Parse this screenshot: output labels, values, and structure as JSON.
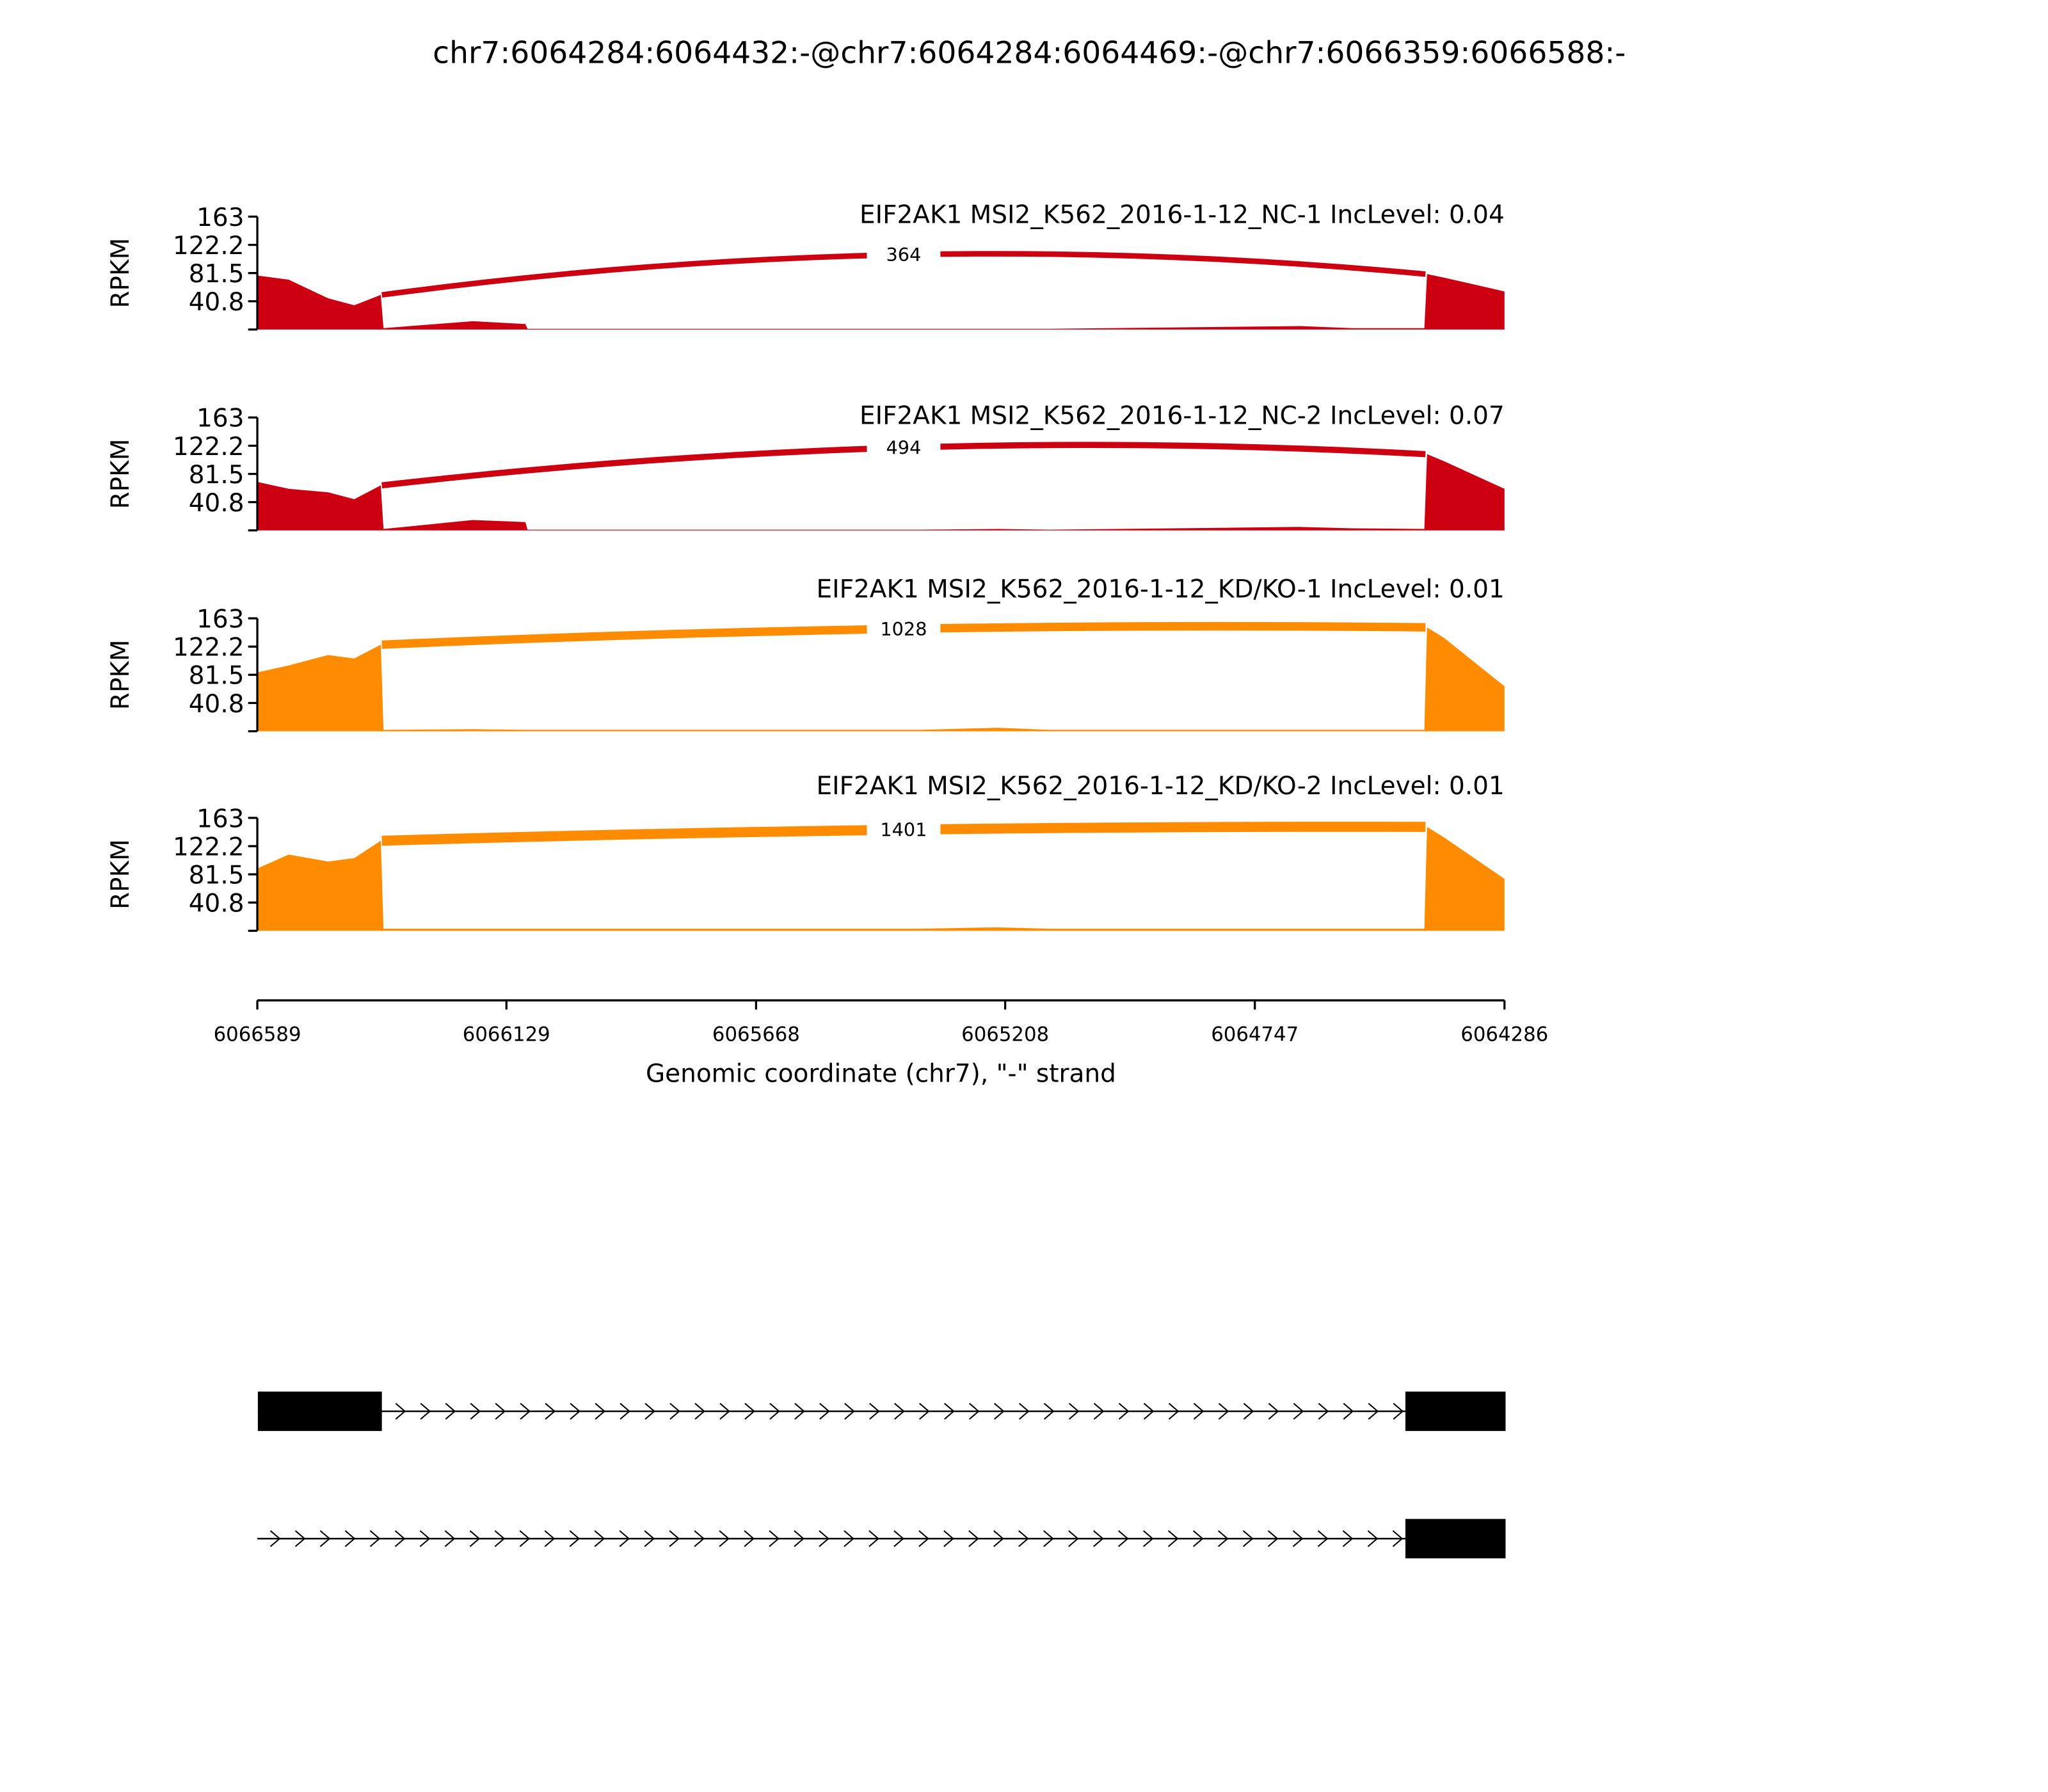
{
  "chart_data": {
    "type": "sashimi",
    "title": "chr7:6064284:6064432:-@chr7:6064284:6064469:-@chr7:6066359:6066588:-",
    "xlabel": "Genomic coordinate (chr7), \"-\" strand",
    "xlim": [
      6066589,
      6064286
    ],
    "xticks": [
      6066589,
      6066129,
      6065668,
      6065208,
      6064747,
      6064286
    ],
    "ylabel": "RPKM",
    "coverage_x": [
      6066589,
      6066531,
      6066458,
      6066410,
      6066361,
      6066356,
      6066191,
      6066094,
      6066090,
      6065367,
      6065222,
      6065125,
      6064664,
      6064567,
      6064434,
      6064429,
      6064398,
      6064286
    ],
    "panels": [
      {
        "label": "EIF2AK1 MSI2_K562_2016-1-12_NC-1 IncLevel: 0.04",
        "color": "#cc0011",
        "ylim": [
          0,
          163
        ],
        "yticks": [
          40.8,
          81.5,
          122.2,
          163
        ],
        "values": [
          78,
          72,
          45,
          35,
          50,
          2,
          12,
          8,
          1,
          1,
          1,
          1,
          5,
          2,
          2,
          80,
          75,
          55
        ],
        "junction": {
          "start": 6066359,
          "end": 6064432,
          "count": 364
        }
      },
      {
        "label": "EIF2AK1 MSI2_K562_2016-1-12_NC-2 IncLevel: 0.07",
        "color": "#cc0011",
        "ylim": [
          0,
          163
        ],
        "yticks": [
          40.8,
          81.5,
          122.2,
          163
        ],
        "values": [
          70,
          60,
          55,
          45,
          65,
          2,
          15,
          12,
          1,
          1,
          2,
          1,
          5,
          3,
          2,
          110,
          100,
          60
        ],
        "junction": {
          "start": 6066359,
          "end": 6064432,
          "count": 494
        }
      },
      {
        "label": "EIF2AK1 MSI2_K562_2016-1-12_KD/KO-1 IncLevel: 0.01",
        "color": "#ff8c00",
        "ylim": [
          0,
          163
        ],
        "yticks": [
          40.8,
          81.5,
          122.2,
          163
        ],
        "values": [
          85,
          95,
          110,
          105,
          125,
          2,
          3,
          2,
          2,
          2,
          5,
          2,
          2,
          2,
          2,
          150,
          135,
          65
        ],
        "junction": {
          "start": 6066359,
          "end": 6064432,
          "count": 1028
        }
      },
      {
        "label": "EIF2AK1 MSI2_K562_2016-1-12_KD/KO-2 IncLevel: 0.01",
        "color": "#ff8c00",
        "ylim": [
          0,
          163
        ],
        "yticks": [
          40.8,
          81.5,
          122.2,
          163
        ],
        "values": [
          90,
          110,
          100,
          105,
          130,
          3,
          3,
          3,
          3,
          3,
          5,
          3,
          3,
          3,
          3,
          150,
          135,
          75
        ],
        "junction": {
          "start": 6066359,
          "end": 6064432,
          "count": 1401
        }
      }
    ],
    "transcripts": [
      {
        "exons": [
          [
            6066359,
            6066588
          ],
          [
            6064284,
            6064469
          ]
        ]
      },
      {
        "exons": [
          [
            6064284,
            6064469
          ]
        ]
      }
    ]
  }
}
